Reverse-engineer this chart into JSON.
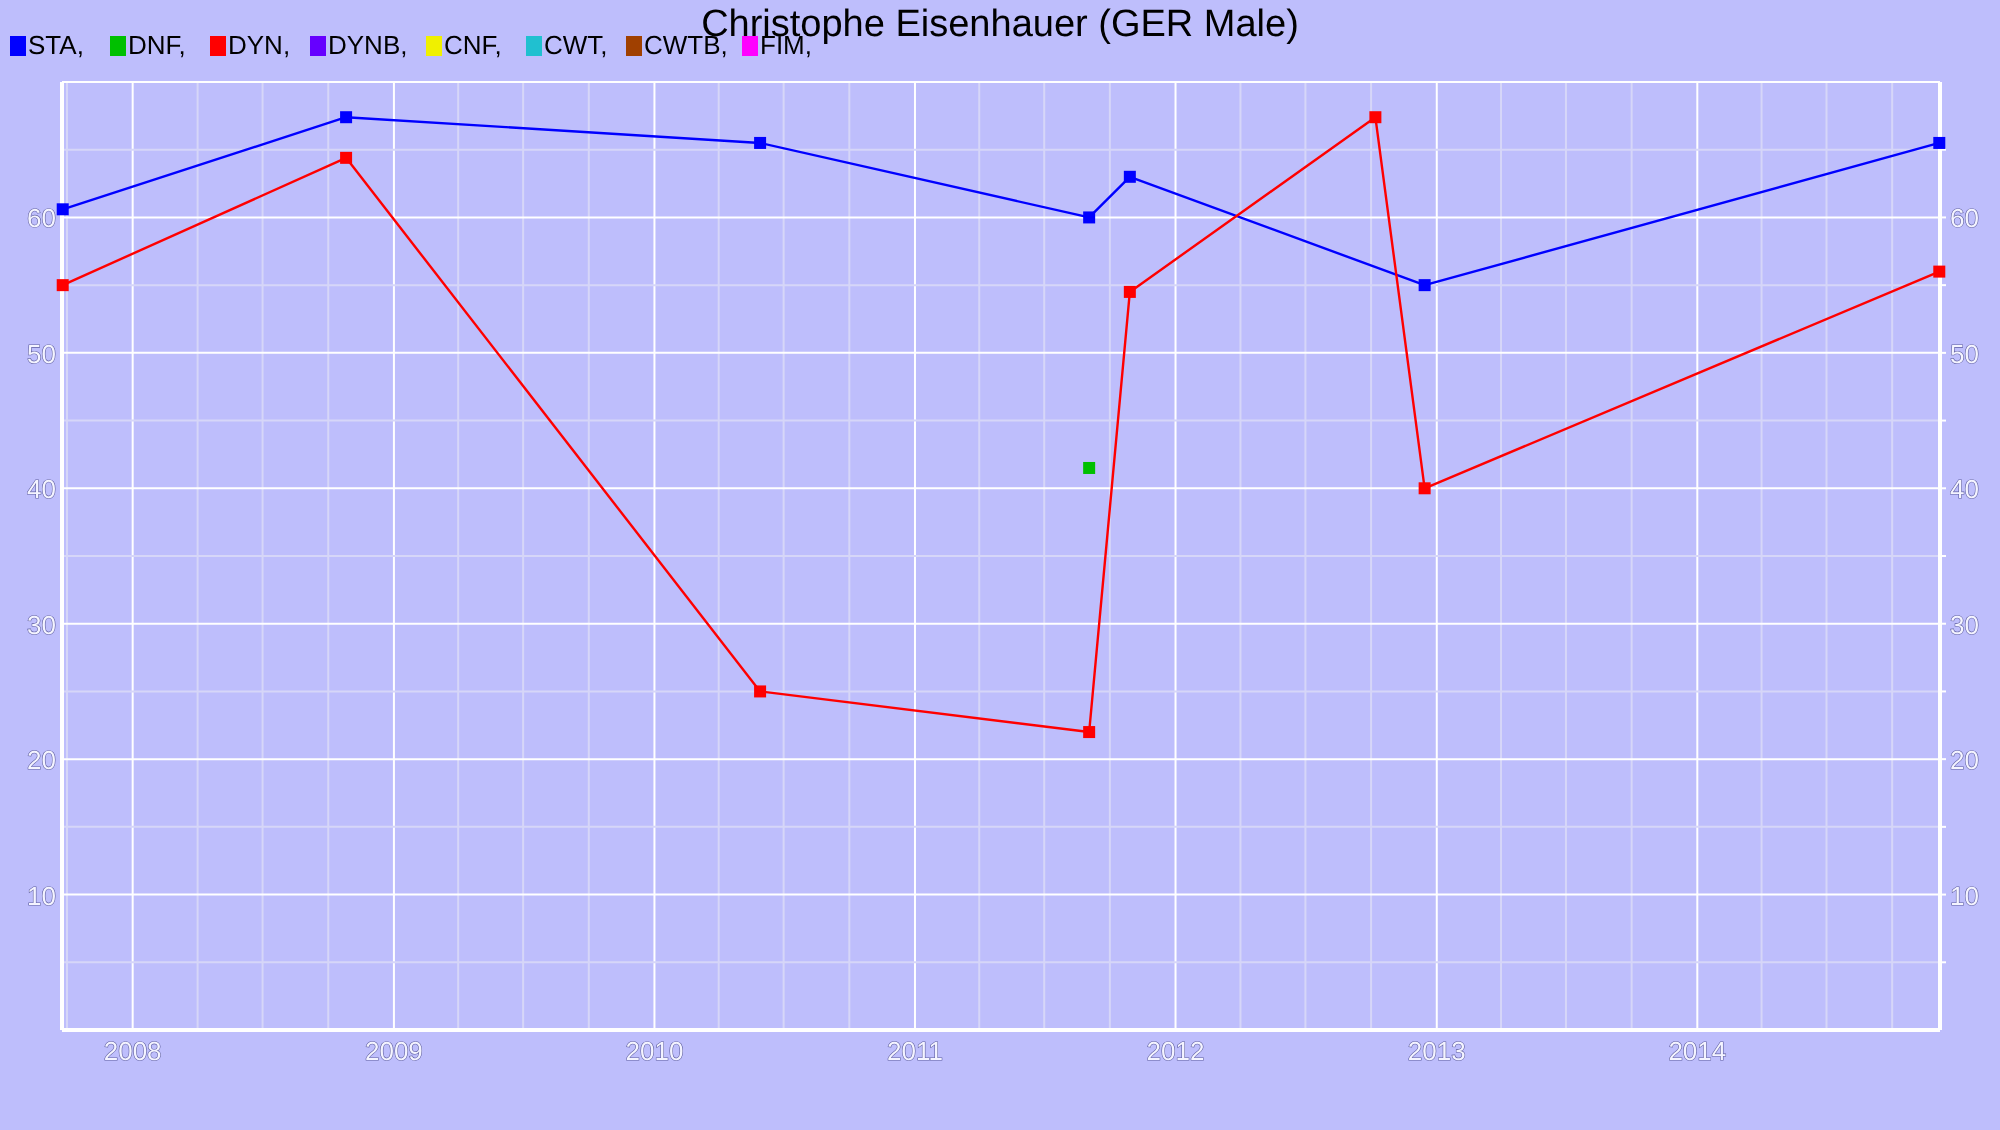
{
  "chart_data": {
    "type": "line",
    "title": "Christophe Eisenhauer (GER Male)",
    "legend": "top left",
    "grid": true,
    "marker": "square",
    "line_style": "solid",
    "xlim": [
      "2007-09-24",
      "2014-12-07"
    ],
    "xticks": [
      {
        "value": "2007-10-01",
        "label": null
      },
      {
        "value": "2008",
        "label": "2008"
      },
      {
        "value": "2008-04-01",
        "label": null
      },
      {
        "value": "2008-07-01",
        "label": null
      },
      {
        "value": "2008-10-01",
        "label": null
      },
      {
        "value": "2009",
        "label": "2009"
      },
      {
        "value": "2009-04-01",
        "label": null
      },
      {
        "value": "2009-07-01",
        "label": null
      },
      {
        "value": "2009-10-01",
        "label": null
      },
      {
        "value": "2010",
        "label": "2010"
      },
      {
        "value": "2010-04-01",
        "label": null
      },
      {
        "value": "2010-07-01",
        "label": null
      },
      {
        "value": "2010-10-01",
        "label": null
      },
      {
        "value": "2011",
        "label": "2011"
      },
      {
        "value": "2011-04-01",
        "label": null
      },
      {
        "value": "2011-07-01",
        "label": null
      },
      {
        "value": "2011-10-01",
        "label": null
      },
      {
        "value": "2012",
        "label": "2012"
      },
      {
        "value": "2012-04-01",
        "label": null
      },
      {
        "value": "2012-07-01",
        "label": null
      },
      {
        "value": "2012-10-01",
        "label": null
      },
      {
        "value": "2013",
        "label": "2013"
      },
      {
        "value": "2013-04-01",
        "label": null
      },
      {
        "value": "2013-07-01",
        "label": null
      },
      {
        "value": "2013-10-01",
        "label": null
      },
      {
        "value": "2014",
        "label": "2014"
      },
      {
        "value": "2014-04-01",
        "label": null
      },
      {
        "value": "2014-07-01",
        "label": null
      },
      {
        "value": "2014-10-01",
        "label": null
      }
    ],
    "ylim": [
      0,
      70
    ],
    "yticks": [
      {
        "value": 5,
        "label": null
      },
      10,
      {
        "value": 15,
        "label": null
      },
      20,
      {
        "value": 25,
        "label": null
      },
      30,
      {
        "value": 35,
        "label": null
      },
      40,
      {
        "value": 45,
        "label": null
      },
      50,
      {
        "value": 55,
        "label": null
      },
      60,
      {
        "value": 65,
        "label": null
      }
    ],
    "y2lim": [
      0,
      70
    ],
    "y2ticks": [
      {
        "value": 5,
        "label": null
      },
      10,
      {
        "value": 15,
        "label": null
      },
      20,
      {
        "value": 25,
        "label": null
      },
      30,
      {
        "value": 35,
        "label": null
      },
      40,
      {
        "value": 45,
        "label": null
      },
      50,
      {
        "value": 55,
        "label": null
      },
      60,
      {
        "value": 65,
        "label": null
      }
    ],
    "series": [
      {
        "name": "STA,",
        "color": "#0000ff",
        "x": [
          "2007-09-25",
          "2008-10-26",
          "2010-05-29",
          "2011-09-02",
          "2011-10-29",
          "2012-12-15",
          "2014-12-06"
        ],
        "values": [
          60.6,
          67.4,
          65.5,
          60.0,
          63.0,
          55.0,
          65.5
        ]
      },
      {
        "name": "DNF,",
        "type": "scatter",
        "color": "#00c000",
        "x": [
          "2011-09-02"
        ],
        "values": [
          41.5
        ]
      },
      {
        "name": "DYN,",
        "color": "#ff0000",
        "x": [
          "2007-09-25",
          "2008-10-26",
          "2010-05-29",
          "2011-09-02",
          "2011-10-29",
          "2012-10-07",
          "2012-12-15",
          "2014-12-06"
        ],
        "values": [
          55.0,
          64.4,
          25.0,
          22.0,
          54.5,
          67.4,
          40.0,
          56.0
        ]
      },
      {
        "name": "DYNB,",
        "color": "#6600ff"
      },
      {
        "name": "CNF,",
        "color": "#f0f000"
      },
      {
        "name": "CWT,",
        "color": "#20c0d0"
      },
      {
        "name": "CWTB,",
        "color": "#a04000"
      },
      {
        "name": "FIM,",
        "color": "#ff00ff"
      }
    ]
  }
}
